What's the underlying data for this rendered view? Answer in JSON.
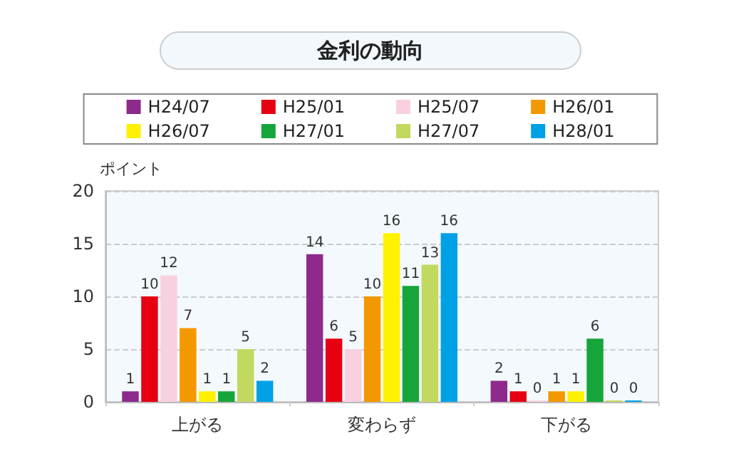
{
  "chart_data": {
    "type": "bar",
    "title": "金利の動向",
    "ylabel": "ポイント",
    "categories": [
      "上がる",
      "変わらず",
      "下がる"
    ],
    "series": [
      {
        "name": "H24/07",
        "color": "#8e2a8c",
        "values": [
          1,
          14,
          2
        ]
      },
      {
        "name": "H25/01",
        "color": "#e60012",
        "values": [
          10,
          6,
          1
        ]
      },
      {
        "name": "H25/07",
        "color": "#f8d0e0",
        "values": [
          12,
          5,
          0
        ]
      },
      {
        "name": "H26/01",
        "color": "#f39800",
        "values": [
          7,
          10,
          1
        ]
      },
      {
        "name": "H26/07",
        "color": "#fff100",
        "values": [
          1,
          16,
          1
        ]
      },
      {
        "name": "H27/01",
        "color": "#16a53a",
        "values": [
          1,
          11,
          6
        ]
      },
      {
        "name": "H27/07",
        "color": "#c1d95f",
        "values": [
          5,
          13,
          0
        ]
      },
      {
        "name": "H28/01",
        "color": "#00a0e6",
        "values": [
          2,
          16,
          0
        ]
      }
    ],
    "ylim": [
      0,
      20
    ],
    "yticks": [
      0,
      5,
      10,
      15,
      20
    ],
    "grid": "y",
    "legend": "top",
    "data_labels": true
  }
}
